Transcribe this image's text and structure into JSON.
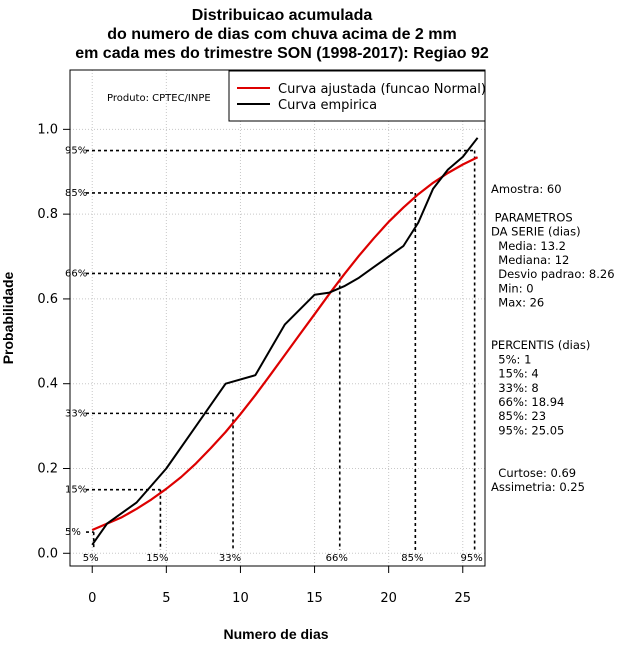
{
  "chart_data": {
    "type": "line",
    "title_lines": [
      "Distribuicao acumulada",
      "do numero de dias com chuva acima de 2 mm",
      "em cada mes do trimestre SON (1998-2017): Regiao 92"
    ],
    "xlabel": "Numero de dias",
    "ylabel": "Probabilidade",
    "xlim": [
      -1.5,
      26.5
    ],
    "ylim": [
      -0.03,
      1.14
    ],
    "x_ticks": [
      0,
      5,
      10,
      15,
      20,
      25
    ],
    "y_ticks": [
      "0.0",
      "0.2",
      "0.4",
      "0.6",
      "0.8",
      "1.0"
    ],
    "y_tick_values": [
      0,
      0.2,
      0.4,
      0.6,
      0.8,
      1.0
    ],
    "grid": true,
    "producer": "Produto: CPTEC/INPE",
    "legend": {
      "position": "top-right",
      "entries": [
        {
          "label": "Curva ajustada (funcao Normal)",
          "color": "#dd0000"
        },
        {
          "label": "Curva empirica",
          "color": "#000000"
        }
      ]
    },
    "series": [
      {
        "name": "Curva ajustada (funcao Normal)",
        "color": "#dd0000",
        "x": [
          0,
          1,
          2,
          3,
          4,
          5,
          6,
          7,
          8,
          9,
          10,
          11,
          12,
          13,
          14,
          15,
          16,
          17,
          18,
          19,
          20,
          21,
          22,
          23,
          24,
          25,
          26
        ],
        "y": [
          0.055,
          0.07,
          0.085,
          0.105,
          0.127,
          0.152,
          0.18,
          0.212,
          0.248,
          0.286,
          0.328,
          0.373,
          0.42,
          0.468,
          0.516,
          0.564,
          0.612,
          0.658,
          0.702,
          0.743,
          0.782,
          0.816,
          0.847,
          0.874,
          0.897,
          0.917,
          0.934
        ]
      },
      {
        "name": "Curva empirica",
        "color": "#000000",
        "x": [
          0,
          1,
          3,
          4,
          5,
          7,
          9,
          11,
          13,
          15,
          16,
          17,
          18,
          19,
          20,
          21,
          22,
          23,
          24,
          25,
          26
        ],
        "y": [
          0.02,
          0.07,
          0.12,
          0.16,
          0.2,
          0.3,
          0.4,
          0.42,
          0.54,
          0.61,
          0.615,
          0.63,
          0.65,
          0.675,
          0.7,
          0.725,
          0.78,
          0.86,
          0.905,
          0.935,
          0.98
        ]
      }
    ],
    "percentile_markers": [
      {
        "label": "5%",
        "x": 0.1,
        "y": 0.05
      },
      {
        "label": "15%",
        "x": 4.6,
        "y": 0.15
      },
      {
        "label": "33%",
        "x": 9.5,
        "y": 0.33
      },
      {
        "label": "66%",
        "x": 16.7,
        "y": 0.66
      },
      {
        "label": "85%",
        "x": 21.8,
        "y": 0.85
      },
      {
        "label": "95%",
        "x": 25.8,
        "y": 0.95
      }
    ],
    "side_text": [
      "Amostra: 60",
      "",
      " PARAMETROS",
      "DA SERIE (dias)",
      "  Media: 13.2",
      "  Mediana: 12",
      "  Desvio padrao: 8.26",
      "  Min: 0",
      "  Max: 26",
      "",
      "",
      "PERCENTIS (dias)",
      "  5%: 1",
      "  15%: 4",
      "  33%: 8",
      "  66%: 18.94",
      "  85%: 23",
      "  95%: 25.05",
      "",
      "",
      "  Curtose: 0.69",
      "Assimetria: 0.25"
    ]
  }
}
